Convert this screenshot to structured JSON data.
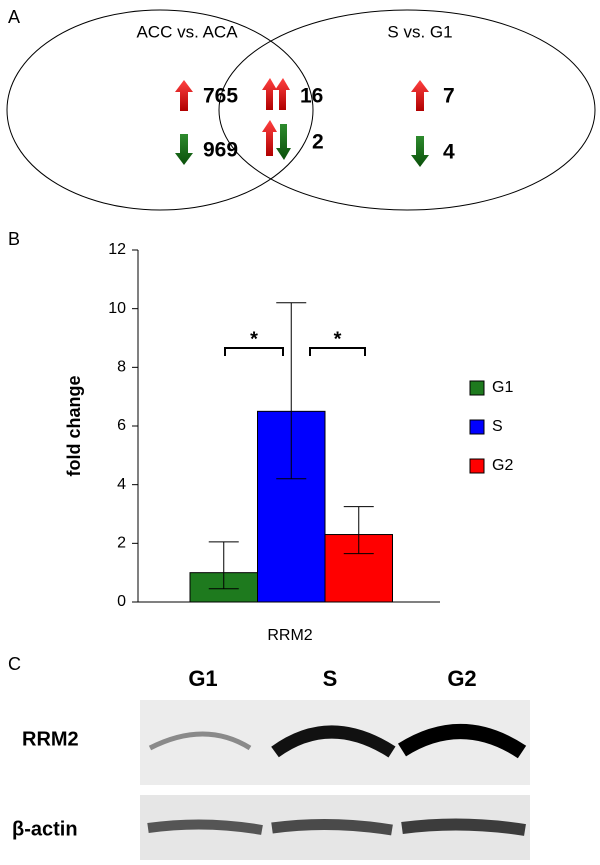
{
  "panel_labels": [
    "A",
    "B",
    "C"
  ],
  "venn": {
    "left_title": "ACC vs. ACA",
    "right_title": "S vs. G1",
    "left_up": "765",
    "left_down": "969",
    "both_up": "16",
    "mixed": "2",
    "right_up": "7",
    "right_down": "4"
  },
  "chart_data": {
    "type": "bar",
    "categories": [
      "RRM2"
    ],
    "y_label": "fold change",
    "series": [
      {
        "name": "G1",
        "color": "#1e7a1e",
        "values": [
          1.0
        ],
        "errors_minus": [
          0.55
        ],
        "errors_plus": [
          1.05
        ]
      },
      {
        "name": "S",
        "color": "#0000ff",
        "values": [
          6.5
        ],
        "errors_minus": [
          2.3
        ],
        "errors_plus": [
          3.7
        ]
      },
      {
        "name": "G2",
        "color": "#ff0000",
        "values": [
          2.3
        ],
        "errors_minus": [
          0.65
        ],
        "errors_plus": [
          0.95
        ]
      }
    ],
    "ylim": [
      0,
      12
    ],
    "yticks": [
      0,
      2,
      4,
      6,
      8,
      10,
      12
    ],
    "annotations": [
      "*",
      "*"
    ],
    "legend": "right"
  },
  "blot": {
    "columns": [
      "G1",
      "S",
      "G2"
    ],
    "rows": [
      "RRM2",
      "β-actin"
    ]
  }
}
